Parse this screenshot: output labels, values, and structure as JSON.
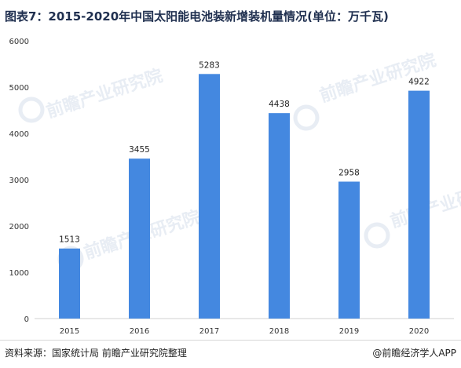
{
  "page": {
    "title": "图表7：2015-2020年中国太阳能电池装新增装机量情况(单位：万千瓦)",
    "watermark": "前瞻产业研究院",
    "source": "资料来源：国家统计局 前瞻产业研究院整理",
    "brand": "@前瞻经济学人APP"
  },
  "chart_data": {
    "type": "bar",
    "title": "图表7：2015-2020年中国太阳能电池装新增装机量情况(单位：万千瓦)",
    "categories": [
      "2015",
      "2016",
      "2017",
      "2018",
      "2019",
      "2020"
    ],
    "values": [
      1513,
      3455,
      5283,
      4438,
      2958,
      4922
    ],
    "ylim": [
      0,
      6000
    ],
    "yticks": [
      0,
      1000,
      2000,
      3000,
      4000,
      5000,
      6000
    ],
    "grid": false,
    "bar_color": "#4488e0",
    "data_labels": true
  }
}
